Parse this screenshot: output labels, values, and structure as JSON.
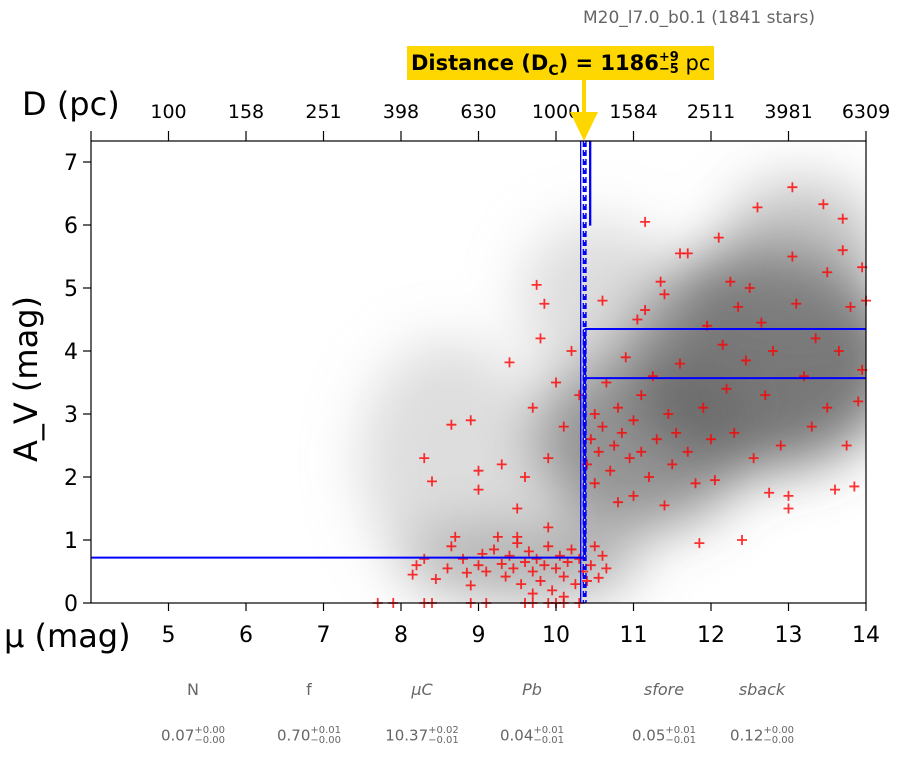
{
  "subtitle": "M20_l7.0_b0.1 (1841 stars)",
  "banner": {
    "prefix": "Distance (D",
    "sub": "C",
    "mid": ") = 1186",
    "sup": "+9",
    "sub2": "−5",
    "unit": " pc"
  },
  "params": [
    {
      "name": "N",
      "value": "0.07",
      "plus": "+0.00",
      "minus": "−0.00"
    },
    {
      "name": "f",
      "value": "0.70",
      "plus": "+0.01",
      "minus": "−0.00"
    },
    {
      "name": "μC",
      "value": "10.37",
      "plus": "+0.02",
      "minus": "−0.01"
    },
    {
      "name": "Pb",
      "value": "0.04",
      "plus": "+0.01",
      "minus": "−0.01"
    },
    {
      "name": "sfore",
      "value": "0.05",
      "plus": "+0.01",
      "minus": "−0.01"
    },
    {
      "name": "sback",
      "value": "0.12",
      "plus": "+0.00",
      "minus": "−0.00"
    }
  ],
  "chart_data": {
    "type": "scatter",
    "xlabel": "μ (mag)",
    "ylabel": "A_V (mag)",
    "top_xlabel": "D (pc)",
    "xlim": [
      4,
      14
    ],
    "ylim": [
      0,
      7.33
    ],
    "xticks": [
      5,
      6,
      7,
      8,
      9,
      10,
      11,
      12,
      13,
      14
    ],
    "yticks": [
      0,
      1,
      2,
      3,
      4,
      5,
      6,
      7
    ],
    "top_ticks": [
      "100",
      "158",
      "251",
      "398",
      "630",
      "1000",
      "1584",
      "2511",
      "3981",
      "6309"
    ],
    "colors": {
      "points": "#ff0000",
      "model": "#0000ff",
      "banner": "#FFD700"
    },
    "model": {
      "mu_c": 10.37,
      "av_fore": 0.72,
      "av_back_low": 3.57,
      "av_back_high": 4.35,
      "hist_top": 6.0
    },
    "points": [
      [
        7.7,
        0
      ],
      [
        7.9,
        0
      ],
      [
        8.3,
        0
      ],
      [
        8.4,
        0
      ],
      [
        8.9,
        0
      ],
      [
        9.1,
        0
      ],
      [
        9.6,
        0
      ],
      [
        9.7,
        0
      ],
      [
        9.9,
        0
      ],
      [
        10.0,
        0
      ],
      [
        10.1,
        0
      ],
      [
        10.3,
        0
      ],
      [
        8.2,
        0.6
      ],
      [
        8.15,
        0.45
      ],
      [
        8.3,
        0.7
      ],
      [
        8.45,
        0.38
      ],
      [
        8.6,
        0.55
      ],
      [
        8.65,
        0.9
      ],
      [
        8.7,
        1.05
      ],
      [
        8.8,
        0.7
      ],
      [
        8.85,
        0.48
      ],
      [
        8.9,
        0.28
      ],
      [
        9.0,
        0.6
      ],
      [
        9.05,
        0.78
      ],
      [
        9.1,
        0.5
      ],
      [
        9.2,
        0.85
      ],
      [
        9.25,
        1.05
      ],
      [
        9.3,
        0.62
      ],
      [
        9.35,
        0.42
      ],
      [
        9.4,
        0.75
      ],
      [
        9.45,
        0.55
      ],
      [
        9.5,
        0.95
      ],
      [
        9.55,
        0.3
      ],
      [
        9.6,
        0.65
      ],
      [
        9.65,
        0.82
      ],
      [
        9.7,
        0.5
      ],
      [
        9.75,
        0.7
      ],
      [
        9.8,
        0.35
      ],
      [
        9.85,
        0.6
      ],
      [
        9.9,
        0.9
      ],
      [
        9.95,
        0.2
      ],
      [
        10.0,
        0.55
      ],
      [
        10.05,
        0.75
      ],
      [
        10.1,
        0.42
      ],
      [
        10.15,
        0.65
      ],
      [
        10.2,
        0.85
      ],
      [
        10.25,
        0.3
      ],
      [
        10.3,
        0.7
      ],
      [
        10.35,
        0.5
      ],
      [
        10.45,
        0.6
      ],
      [
        10.5,
        0.9
      ],
      [
        10.55,
        0.4
      ],
      [
        10.6,
        0.75
      ],
      [
        10.65,
        0.55
      ],
      [
        10.4,
        0.35
      ],
      [
        9.7,
        0.15
      ],
      [
        10.1,
        0.1
      ],
      [
        8.3,
        2.3
      ],
      [
        8.4,
        1.93
      ],
      [
        8.65,
        2.83
      ],
      [
        8.9,
        2.9
      ],
      [
        9.0,
        2.1
      ],
      [
        9.0,
        1.8
      ],
      [
        9.3,
        2.2
      ],
      [
        9.4,
        3.82
      ],
      [
        9.5,
        1.5
      ],
      [
        9.6,
        2.0
      ],
      [
        9.7,
        3.1
      ],
      [
        9.75,
        5.05
      ],
      [
        9.85,
        4.75
      ],
      [
        9.8,
        4.2
      ],
      [
        9.9,
        2.3
      ],
      [
        10.0,
        3.5
      ],
      [
        10.1,
        2.8
      ],
      [
        10.2,
        4.0
      ],
      [
        10.3,
        3.3
      ],
      [
        9.9,
        1.2
      ],
      [
        9.5,
        1.05
      ],
      [
        10.4,
        2.2
      ],
      [
        10.45,
        2.6
      ],
      [
        10.5,
        3.0
      ],
      [
        10.5,
        1.9
      ],
      [
        10.55,
        2.4
      ],
      [
        10.6,
        2.8
      ],
      [
        10.6,
        4.8
      ],
      [
        10.65,
        3.5
      ],
      [
        10.7,
        2.1
      ],
      [
        10.75,
        2.5
      ],
      [
        10.8,
        3.1
      ],
      [
        10.8,
        1.6
      ],
      [
        10.85,
        2.7
      ],
      [
        10.9,
        3.9
      ],
      [
        10.95,
        2.3
      ],
      [
        11.0,
        2.9
      ],
      [
        11.0,
        1.7
      ],
      [
        11.05,
        4.5
      ],
      [
        11.1,
        2.4
      ],
      [
        11.1,
        3.3
      ],
      [
        11.15,
        6.05
      ],
      [
        11.15,
        4.65
      ],
      [
        11.2,
        2.0
      ],
      [
        11.25,
        3.6
      ],
      [
        11.3,
        2.6
      ],
      [
        11.35,
        5.1
      ],
      [
        11.4,
        1.55
      ],
      [
        11.4,
        4.9
      ],
      [
        11.45,
        3.0
      ],
      [
        11.5,
        2.2
      ],
      [
        11.55,
        2.7
      ],
      [
        11.6,
        5.55
      ],
      [
        11.6,
        3.8
      ],
      [
        11.7,
        5.55
      ],
      [
        11.7,
        2.4
      ],
      [
        11.8,
        1.9
      ],
      [
        11.85,
        0.95
      ],
      [
        11.9,
        3.1
      ],
      [
        11.95,
        4.4
      ],
      [
        12.0,
        2.6
      ],
      [
        12.05,
        1.95
      ],
      [
        12.1,
        5.8
      ],
      [
        12.15,
        4.1
      ],
      [
        12.2,
        3.4
      ],
      [
        12.25,
        5.1
      ],
      [
        12.3,
        2.7
      ],
      [
        12.35,
        4.7
      ],
      [
        12.4,
        1.0
      ],
      [
        12.45,
        3.85
      ],
      [
        12.5,
        5.0
      ],
      [
        12.55,
        2.3
      ],
      [
        12.6,
        6.28
      ],
      [
        12.65,
        4.45
      ],
      [
        12.7,
        3.3
      ],
      [
        12.75,
        1.75
      ],
      [
        12.8,
        4.0
      ],
      [
        12.9,
        2.5
      ],
      [
        13.0,
        1.5
      ],
      [
        13.0,
        1.7
      ],
      [
        13.05,
        5.5
      ],
      [
        13.05,
        6.6
      ],
      [
        13.1,
        4.75
      ],
      [
        13.2,
        3.6
      ],
      [
        13.3,
        2.8
      ],
      [
        13.35,
        4.2
      ],
      [
        13.45,
        6.33
      ],
      [
        13.5,
        5.25
      ],
      [
        13.5,
        3.1
      ],
      [
        13.6,
        1.8
      ],
      [
        13.65,
        4.0
      ],
      [
        13.7,
        6.1
      ],
      [
        13.7,
        5.6
      ],
      [
        13.75,
        2.5
      ],
      [
        13.8,
        4.7
      ],
      [
        13.85,
        1.85
      ],
      [
        13.9,
        3.2
      ],
      [
        13.95,
        5.33
      ],
      [
        14.0,
        4.8
      ],
      [
        13.95,
        3.7
      ]
    ]
  }
}
